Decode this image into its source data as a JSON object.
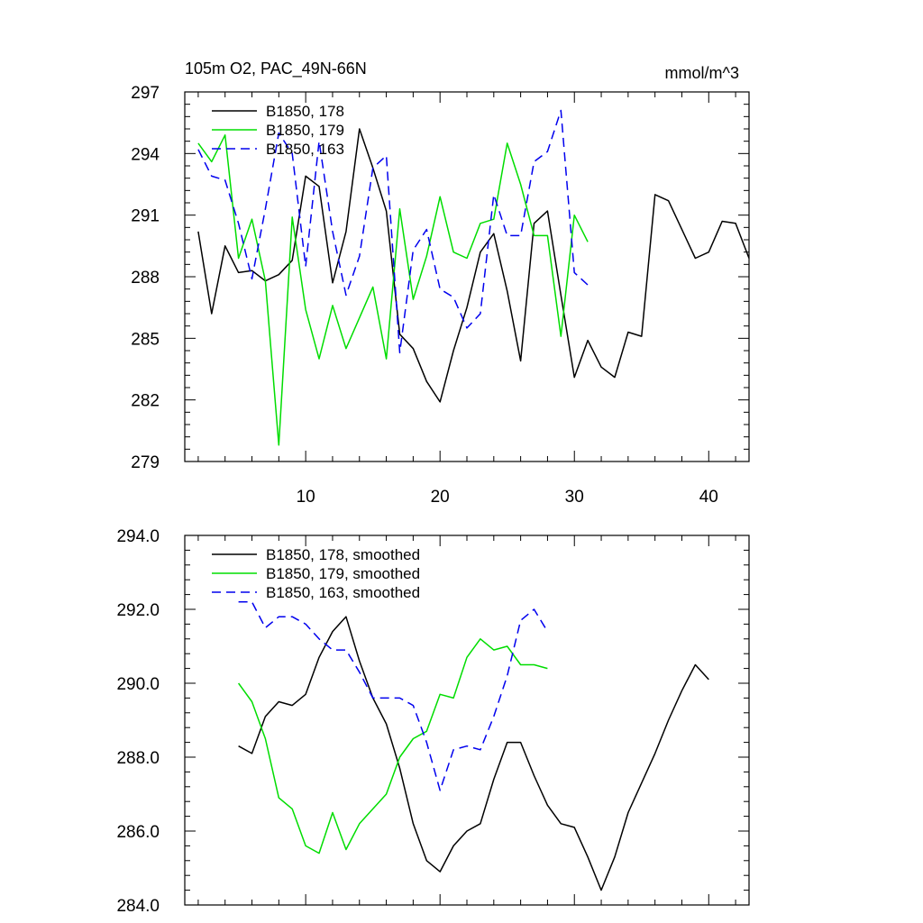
{
  "colors": {
    "s178": "#000000",
    "s179": "#00dd00",
    "s163": "#0000ee"
  },
  "chart_data": [
    {
      "type": "line",
      "title": "105m O2, PAC_49N-66N",
      "units": "mmol/m^3",
      "xlim": [
        1,
        43
      ],
      "ylim": [
        279,
        297
      ],
      "yticks": [
        "279",
        "282",
        "285",
        "288",
        "291",
        "294",
        "297"
      ],
      "xticks": [
        "10",
        "20",
        "30",
        "40"
      ],
      "legend_position": "top-left",
      "series": [
        {
          "name": "B1850, 178",
          "color": "#000000",
          "dash": "none",
          "x": [
            2,
            3,
            4,
            5,
            6,
            7,
            8,
            9,
            10,
            11,
            12,
            13,
            14,
            15,
            16,
            17,
            18,
            19,
            20,
            21,
            22,
            23,
            24,
            25,
            26,
            27,
            28,
            29,
            30,
            31,
            32,
            33,
            34,
            35,
            36,
            37,
            38,
            39,
            40,
            41,
            42,
            43
          ],
          "y": [
            290.2,
            286.2,
            289.5,
            288.2,
            288.3,
            287.8,
            288.1,
            288.8,
            292.9,
            292.4,
            287.7,
            290.2,
            295.2,
            293.3,
            291.2,
            285.2,
            284.5,
            282.9,
            281.9,
            284.4,
            286.5,
            289.2,
            290.1,
            287.3,
            283.9,
            290.6,
            291.2,
            287.1,
            283.1,
            284.9,
            283.6,
            283.1,
            285.3,
            285.1,
            292.0,
            291.7,
            290.3,
            288.9,
            289.2,
            290.7,
            290.6,
            288.9
          ]
        },
        {
          "name": "B1850, 179",
          "color": "#00dd00",
          "dash": "none",
          "x": [
            2,
            3,
            4,
            5,
            6,
            7,
            8,
            9,
            10,
            11,
            12,
            13,
            14,
            15,
            16,
            17,
            18,
            19,
            20,
            21,
            22,
            23,
            24,
            25,
            26,
            27,
            28,
            29,
            30,
            31
          ],
          "y": [
            294.5,
            293.6,
            294.9,
            288.9,
            290.8,
            287.8,
            279.8,
            290.9,
            286.4,
            284.0,
            286.6,
            284.5,
            286.0,
            287.5,
            284.0,
            291.3,
            286.9,
            289.0,
            291.9,
            289.2,
            288.9,
            290.6,
            290.8,
            294.5,
            292.5,
            290.0,
            290.0,
            285.1,
            291.0,
            289.7
          ]
        },
        {
          "name": "B1850, 163",
          "color": "#0000ee",
          "dash": "dashed",
          "x": [
            2,
            3,
            4,
            5,
            6,
            7,
            8,
            9,
            10,
            11,
            12,
            13,
            14,
            15,
            16,
            17,
            18,
            19,
            20,
            21,
            22,
            23,
            24,
            25,
            26,
            27,
            28,
            29,
            30,
            31
          ],
          "y": [
            294.2,
            292.9,
            292.7,
            290.6,
            287.9,
            291.3,
            295.0,
            294.0,
            288.5,
            294.6,
            290.2,
            287.1,
            289.0,
            293.3,
            293.9,
            284.3,
            289.3,
            290.3,
            287.4,
            287.0,
            285.5,
            286.2,
            292.0,
            290.0,
            290.0,
            293.6,
            294.1,
            296.1,
            288.2,
            287.6
          ]
        }
      ]
    },
    {
      "type": "line",
      "title": "",
      "units": "",
      "xlim": [
        1,
        43
      ],
      "ylim": [
        284,
        294
      ],
      "yticks": [
        "284.0",
        "286.0",
        "288.0",
        "290.0",
        "292.0",
        "294.0"
      ],
      "xticks": [
        "",
        "",
        "",
        ""
      ],
      "legend_position": "top-left",
      "series": [
        {
          "name": "B1850, 178, smoothed",
          "color": "#000000",
          "dash": "none",
          "x": [
            5,
            6,
            7,
            8,
            9,
            10,
            11,
            12,
            13,
            14,
            15,
            16,
            17,
            18,
            19,
            20,
            21,
            22,
            23,
            24,
            25,
            26,
            27,
            28,
            29,
            30,
            31,
            32,
            33,
            34,
            35,
            36,
            37,
            38,
            39,
            40
          ],
          "y": [
            288.3,
            288.1,
            289.1,
            289.5,
            289.4,
            289.7,
            290.7,
            291.4,
            291.8,
            290.6,
            289.6,
            288.9,
            287.7,
            286.2,
            285.2,
            284.9,
            285.6,
            286.0,
            286.2,
            287.4,
            288.4,
            288.4,
            287.5,
            286.7,
            286.2,
            286.1,
            285.3,
            284.4,
            285.3,
            286.5,
            287.3,
            288.1,
            289.0,
            289.8,
            290.5,
            290.1
          ]
        },
        {
          "name": "B1850, 179, smoothed",
          "color": "#00dd00",
          "dash": "none",
          "x": [
            5,
            6,
            7,
            8,
            9,
            10,
            11,
            12,
            13,
            14,
            15,
            16,
            17,
            18,
            19,
            20,
            21,
            22,
            23,
            24,
            25,
            26,
            27,
            28
          ],
          "y": [
            290.0,
            289.5,
            288.5,
            286.9,
            286.6,
            285.6,
            285.4,
            286.5,
            285.5,
            286.2,
            286.6,
            287.0,
            288.0,
            288.5,
            288.7,
            289.7,
            289.6,
            290.7,
            291.2,
            290.9,
            291.0,
            290.5,
            290.5,
            290.4
          ]
        },
        {
          "name": "B1850, 163, smoothed",
          "color": "#0000ee",
          "dash": "dashed",
          "x": [
            5,
            6,
            7,
            8,
            9,
            10,
            11,
            12,
            13,
            14,
            15,
            16,
            17,
            18,
            19,
            20,
            21,
            22,
            23,
            24,
            25,
            26,
            27,
            28
          ],
          "y": [
            292.2,
            292.2,
            291.5,
            291.8,
            291.8,
            291.6,
            291.2,
            290.9,
            290.9,
            290.3,
            289.6,
            289.6,
            289.6,
            289.4,
            288.4,
            287.1,
            288.2,
            288.3,
            288.2,
            289.1,
            290.2,
            291.7,
            292.0,
            291.4
          ]
        }
      ]
    }
  ]
}
